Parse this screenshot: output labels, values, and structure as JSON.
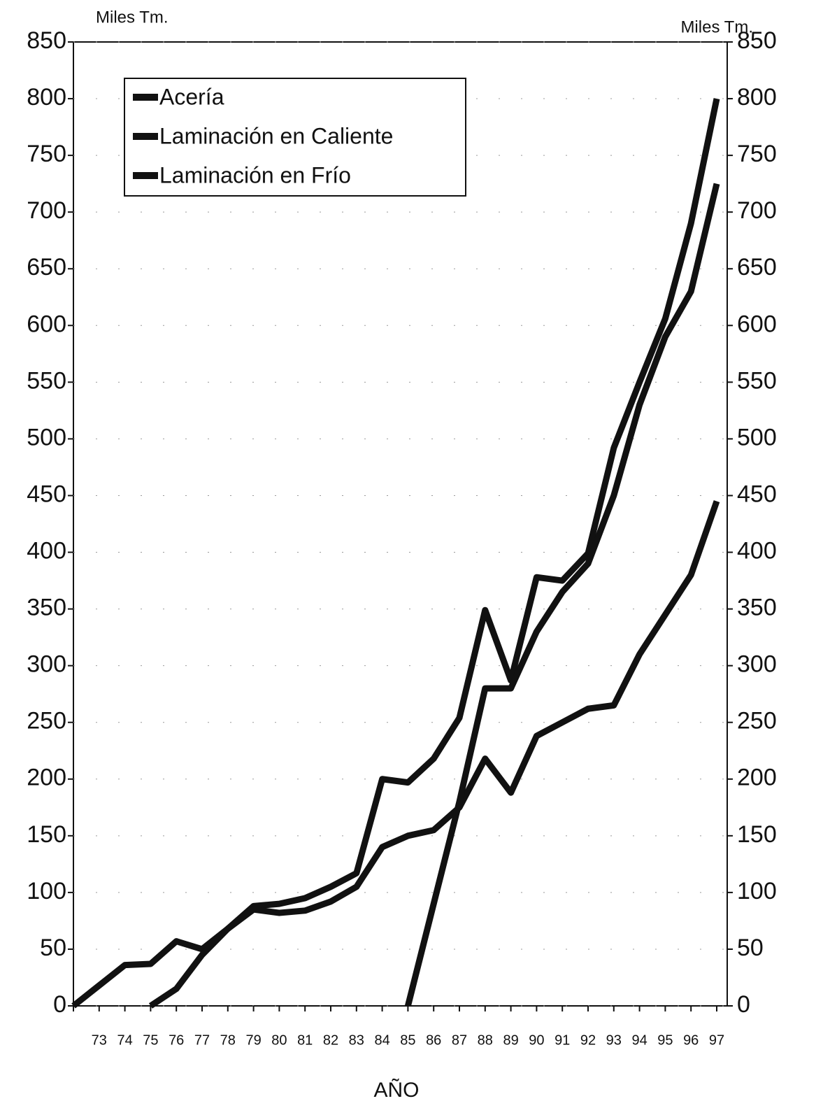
{
  "chart_data": {
    "type": "line",
    "y_label": "Miles Tm.",
    "y2_label": "Miles Tm.",
    "x_label": "AÑO",
    "categories": [
      null,
      "73",
      "74",
      "75",
      "76",
      "77",
      "78",
      "79",
      "80",
      "81",
      "82",
      "83",
      "84",
      "85",
      "86",
      "87",
      "88",
      "89",
      "90",
      "91",
      "92",
      "93",
      "94",
      "95",
      "96",
      "97"
    ],
    "series": [
      {
        "name": "Acería",
        "color": "#111111",
        "values": [
          0,
          18,
          36,
          37,
          57,
          50,
          68,
          88,
          90,
          95,
          105,
          117,
          200,
          197,
          218,
          254,
          349,
          287,
          378,
          375,
          399,
          492,
          550,
          606,
          690,
          800
        ]
      },
      {
        "name": "Laminación en Caliente",
        "color": "#111111",
        "values": [
          null,
          null,
          null,
          0,
          15,
          45,
          68,
          85,
          82,
          84,
          92,
          105,
          140,
          150,
          155,
          175,
          218,
          188,
          238,
          250,
          262,
          265,
          310,
          345,
          380,
          445
        ]
      },
      {
        "name": "Laminación en Frío",
        "color": "#111111",
        "values": [
          null,
          null,
          null,
          null,
          null,
          null,
          null,
          null,
          null,
          null,
          null,
          null,
          null,
          0,
          90,
          180,
          280,
          280,
          330,
          365,
          390,
          450,
          530,
          590,
          630,
          725
        ]
      }
    ],
    "ylim": [
      0,
      850
    ],
    "yticks": [
      0,
      50,
      100,
      150,
      200,
      250,
      300,
      350,
      400,
      450,
      500,
      550,
      600,
      650,
      700,
      750,
      800,
      850
    ],
    "y2lim": [
      0,
      850
    ],
    "y2ticks": [
      0,
      50,
      100,
      150,
      200,
      250,
      300,
      350,
      400,
      450,
      500,
      550,
      600,
      650,
      700,
      750,
      800,
      850
    ],
    "grid": true,
    "legend": "upper left"
  }
}
